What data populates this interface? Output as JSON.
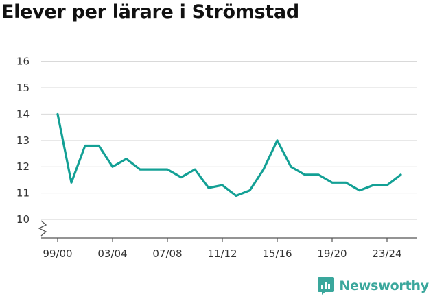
{
  "brand": {
    "name": "Newsworthy",
    "logo_icon": "newsworthy-logo-icon",
    "color": "#3aa79c"
  },
  "chart_data": {
    "type": "line",
    "title": "Elever per lärare i Strömstad",
    "xlabel": "",
    "ylabel": "",
    "line_color": "#13a095",
    "grid": true,
    "y_axis_break": true,
    "ylim": [
      9.3,
      16.3
    ],
    "y_ticks": [
      10,
      11,
      12,
      13,
      14,
      15,
      16
    ],
    "x_tick_labels": [
      "99/00",
      "03/04",
      "07/08",
      "11/12",
      "15/16",
      "19/20",
      "23/24"
    ],
    "categories": [
      "99/00",
      "00/01",
      "01/02",
      "02/03",
      "03/04",
      "04/05",
      "05/06",
      "06/07",
      "07/08",
      "08/09",
      "09/10",
      "10/11",
      "11/12",
      "12/13",
      "13/14",
      "14/15",
      "15/16",
      "16/17",
      "17/18",
      "18/19",
      "19/20",
      "20/21",
      "21/22",
      "22/23",
      "23/24",
      "24/25"
    ],
    "series": [
      {
        "values": [
          14.0,
          11.4,
          12.8,
          12.8,
          12.0,
          12.3,
          11.9,
          11.9,
          11.9,
          11.6,
          11.9,
          11.2,
          11.3,
          10.9,
          11.1,
          11.9,
          13.0,
          12.0,
          11.7,
          11.7,
          11.4,
          11.4,
          11.1,
          11.3,
          11.3,
          11.7
        ]
      }
    ]
  }
}
